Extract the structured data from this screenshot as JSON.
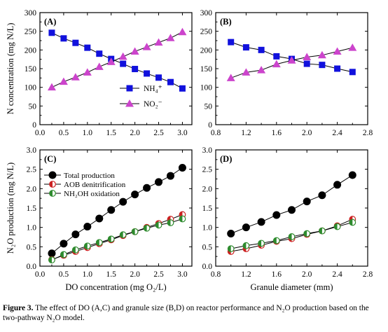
{
  "caption": {
    "lead": "Figure 3.",
    "text": "The effect of DO (A,C) and granule size (B,D) on reactor performance and N₂O production based on the two-pathway N₂O model."
  },
  "chart_data": [
    {
      "panel": "(A)",
      "type": "line",
      "xlabel": "",
      "ylabel": "N concentration (mg N/L)",
      "xlim": [
        0,
        3.2
      ],
      "ylim": [
        0,
        300
      ],
      "xticks": [
        "0.0",
        "0.5",
        "1.0",
        "1.5",
        "2.0",
        "2.5",
        "3.0"
      ],
      "xtick_values": [
        0,
        0.5,
        1.0,
        1.5,
        2.0,
        2.5,
        3.0
      ],
      "yticks": [
        "0",
        "50",
        "100",
        "150",
        "200",
        "250",
        "300"
      ],
      "ytick_values": [
        0,
        50,
        100,
        150,
        200,
        250,
        300
      ],
      "legend_position": "center-right",
      "x": [
        0.25,
        0.5,
        0.75,
        1.0,
        1.25,
        1.5,
        1.75,
        2.0,
        2.25,
        2.5,
        2.75,
        3.0
      ],
      "series": [
        {
          "name": "NH₄⁺",
          "marker": "square",
          "color": "#1111dd",
          "values": [
            246,
            231,
            219,
            206,
            190,
            176,
            163,
            149,
            137,
            126,
            114,
            97
          ]
        },
        {
          "name": "NO₂⁻",
          "marker": "triangle",
          "color": "#cc44cc",
          "values": [
            100,
            115,
            127,
            140,
            155,
            168,
            182,
            196,
            208,
            220,
            232,
            248
          ]
        }
      ]
    },
    {
      "panel": "(B)",
      "type": "line",
      "xlabel": "",
      "ylabel": "",
      "xlim": [
        0.8,
        2.8
      ],
      "ylim": [
        0,
        300
      ],
      "xticks": [
        "0.8",
        "1.2",
        "1.6",
        "2.0",
        "2.4",
        "2.8"
      ],
      "xtick_values": [
        0.8,
        1.2,
        1.6,
        2.0,
        2.4,
        2.8
      ],
      "yticks": [
        "0",
        "50",
        "100",
        "150",
        "200",
        "250",
        "300"
      ],
      "ytick_values": [
        0,
        50,
        100,
        150,
        200,
        250,
        300
      ],
      "x": [
        1.0,
        1.2,
        1.4,
        1.6,
        1.8,
        2.0,
        2.2,
        2.4,
        2.6
      ],
      "series": [
        {
          "marker": "square",
          "color": "#1111dd",
          "values": [
            221,
            207,
            200,
            183,
            176,
            163,
            160,
            150,
            141
          ]
        },
        {
          "marker": "triangle",
          "color": "#cc44cc",
          "values": [
            125,
            140,
            146,
            162,
            172,
            181,
            186,
            196,
            206
          ]
        }
      ]
    },
    {
      "panel": "(C)",
      "type": "line",
      "xlabel": "DO concentration (mg O₂/L)",
      "ylabel": "N₂O production (mg N/L)",
      "xlim": [
        0,
        3.2
      ],
      "ylim": [
        0,
        3.0
      ],
      "xticks": [
        "0.0",
        "0.5",
        "1.0",
        "1.5",
        "2.0",
        "2.5",
        "3.0"
      ],
      "xtick_values": [
        0,
        0.5,
        1.0,
        1.5,
        2.0,
        2.5,
        3.0
      ],
      "yticks": [
        "0.0",
        "0.5",
        "1.0",
        "1.5",
        "2.0",
        "2.5",
        "3.0"
      ],
      "ytick_values": [
        0,
        0.5,
        1.0,
        1.5,
        2.0,
        2.5,
        3.0
      ],
      "legend_position": "top-left",
      "x": [
        0.25,
        0.5,
        0.75,
        1.0,
        1.25,
        1.5,
        1.75,
        2.0,
        2.25,
        2.5,
        2.75,
        3.0
      ],
      "series": [
        {
          "name": "Total production",
          "marker": "circle-filled",
          "color": "#000000",
          "values": [
            0.33,
            0.58,
            0.82,
            1.02,
            1.23,
            1.45,
            1.66,
            1.85,
            2.02,
            2.17,
            2.33,
            2.54
          ]
        },
        {
          "name": "AOB denitrification",
          "marker": "circle-half-red",
          "color": "#cc2222",
          "values": [
            0.17,
            0.28,
            0.38,
            0.48,
            0.58,
            0.68,
            0.79,
            0.89,
            1.0,
            1.1,
            1.21,
            1.33
          ]
        },
        {
          "name": "NH₂OH oxidation",
          "marker": "circle-half-green",
          "color": "#2e8b2e",
          "values": [
            0.16,
            0.3,
            0.42,
            0.52,
            0.61,
            0.7,
            0.81,
            0.89,
            0.98,
            1.06,
            1.12,
            1.22
          ]
        }
      ]
    },
    {
      "panel": "(D)",
      "type": "line",
      "xlabel": "Granule diameter (mm)",
      "ylabel": "",
      "xlim": [
        0.8,
        2.8
      ],
      "ylim": [
        0,
        3.0
      ],
      "xticks": [
        "0.8",
        "1.2",
        "1.6",
        "2.0",
        "2.4",
        "2.8"
      ],
      "xtick_values": [
        0.8,
        1.2,
        1.6,
        2.0,
        2.4,
        2.8
      ],
      "yticks": [
        "0.0",
        "0.5",
        "1.0",
        "1.5",
        "2.0",
        "2.5",
        "3.0"
      ],
      "ytick_values": [
        0,
        0.5,
        1.0,
        1.5,
        2.0,
        2.5,
        3.0
      ],
      "x": [
        1.0,
        1.2,
        1.4,
        1.6,
        1.8,
        2.0,
        2.2,
        2.4,
        2.6
      ],
      "series": [
        {
          "marker": "circle-filled",
          "color": "#000000",
          "values": [
            0.84,
            1.0,
            1.14,
            1.32,
            1.45,
            1.67,
            1.83,
            2.1,
            2.35
          ]
        },
        {
          "marker": "circle-half-red",
          "color": "#cc2222",
          "values": [
            0.38,
            0.45,
            0.54,
            0.64,
            0.71,
            0.82,
            0.91,
            1.04,
            1.21
          ]
        },
        {
          "marker": "circle-half-green",
          "color": "#2e8b2e",
          "values": [
            0.45,
            0.53,
            0.59,
            0.66,
            0.76,
            0.84,
            0.91,
            1.02,
            1.13
          ]
        }
      ]
    }
  ]
}
